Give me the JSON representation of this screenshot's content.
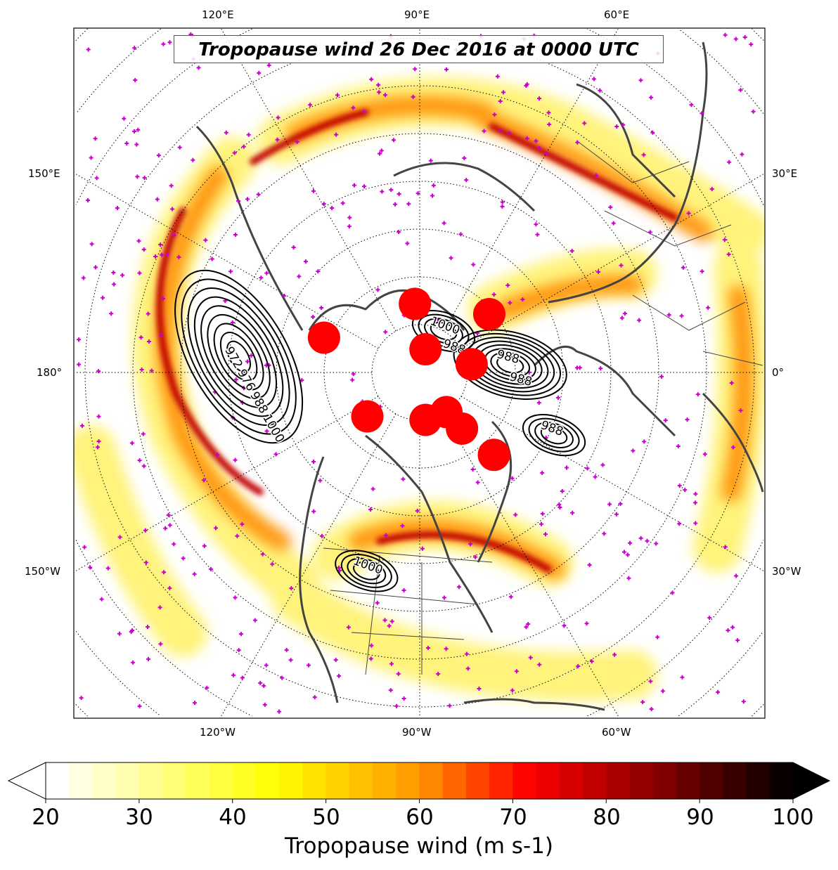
{
  "title": "Tropopause wind 26 Dec 2016 at 0000 UTC",
  "longitude_labels": {
    "top": [
      "120°E",
      "90°E",
      "60°E"
    ],
    "left": [
      "150°E",
      "180°",
      "150°W"
    ],
    "right": [
      "30°E",
      "0°",
      "30°W"
    ],
    "bottom": [
      "120°W",
      "90°W",
      "60°W"
    ]
  },
  "colorbar": {
    "label": "Tropopause wind (m s-1)",
    "min": 20,
    "max": 100,
    "step": 2.5,
    "ticks": [
      "20",
      "30",
      "40",
      "50",
      "60",
      "70",
      "80",
      "90",
      "100"
    ],
    "extend": "both"
  },
  "chart_data": {
    "type": "map",
    "projection": "north-polar-stereographic",
    "field": "Tropopause wind speed (m s-1), filled contours 20-100",
    "pressure_contours": [
      {
        "name": "north-pacific-low",
        "labels": [
          "972",
          "976",
          "988",
          "1000"
        ],
        "lon": 175,
        "lat": 52
      },
      {
        "name": "scandinavia-low",
        "labels": [
          "988",
          "988"
        ],
        "lon": 5,
        "lat": 71
      },
      {
        "name": "arctic-contour",
        "labels": [
          "1000",
          "988"
        ],
        "lon": 60,
        "lat": 80
      },
      {
        "name": "north-atlantic-low",
        "labels": [
          "988"
        ],
        "lon": -25,
        "lat": 59
      },
      {
        "name": "us-rockies-low",
        "labels": [
          "1000"
        ],
        "lon": -105,
        "lat": 47
      }
    ],
    "cyclone_markers": [
      {
        "lon": 160,
        "lat": 68.7
      },
      {
        "lon": 94,
        "lat": 75.6
      },
      {
        "lon": 76,
        "lat": 85
      },
      {
        "lon": 9,
        "lat": 79
      },
      {
        "lon": -140,
        "lat": 75.7
      },
      {
        "lon": -83,
        "lat": 80
      },
      {
        "lon": -56,
        "lat": 80
      },
      {
        "lon": -53,
        "lat": 75.3
      },
      {
        "lon": -48,
        "lat": 66.8
      },
      {
        "lon": 40,
        "lat": 71
      }
    ],
    "colors": {
      "marker": "#ff0000",
      "obs": "#cc00cc",
      "coast": "#444444",
      "contour": "#000000"
    }
  }
}
